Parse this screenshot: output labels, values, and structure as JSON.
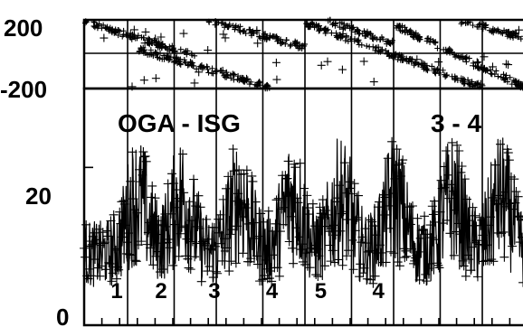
{
  "chart_data": [
    {
      "type": "scatter",
      "panel": "top",
      "title": "",
      "xlabel": "",
      "ylabel": "",
      "ylim": [
        -200,
        200
      ],
      "yticks": [
        "200",
        "-200"
      ],
      "reference_line_y": 0,
      "grid": false,
      "legend": "none",
      "series": [
        {
          "marker": "+",
          "bands": [
            {
              "t_start": 0.0,
              "t_end": 0.25,
              "y_start": 190,
              "y_end": -10
            },
            {
              "t_start": 0.12,
              "t_end": 0.42,
              "y_start": 30,
              "y_end": -195
            },
            {
              "t_start": 0.28,
              "t_end": 0.5,
              "y_start": 195,
              "y_end": 40
            },
            {
              "t_start": 0.5,
              "t_end": 0.9,
              "y_start": 180,
              "y_end": -195
            },
            {
              "t_start": 0.55,
              "t_end": 0.7,
              "y_start": 195,
              "y_end": 60
            },
            {
              "t_start": 0.7,
              "t_end": 1.0,
              "y_start": 170,
              "y_end": -200
            },
            {
              "t_start": 0.85,
              "t_end": 1.0,
              "y_start": 195,
              "y_end": 90
            }
          ]
        }
      ]
    },
    {
      "type": "line",
      "panel": "bottom",
      "title": "",
      "xlabel": "",
      "ylabel": "",
      "ylim": [
        0,
        30
      ],
      "yticks": [
        "20",
        "0"
      ],
      "ytick_values": [
        20,
        0
      ],
      "grid": false,
      "legend": "none",
      "annotations": [
        "OGA - ISG",
        "3 - 4"
      ],
      "minor_labels": [
        "1",
        "2",
        "3",
        "4",
        "5",
        "4"
      ],
      "series": [
        {
          "marker": "+",
          "typical_range": [
            3,
            22
          ],
          "peak_value": 27,
          "peaks_at_fraction": [
            0.12,
            0.22,
            0.35,
            0.47,
            0.58,
            0.7,
            0.83,
            0.94
          ]
        }
      ]
    }
  ],
  "colors": {
    "ink": "#000000",
    "background": "#ffffff"
  }
}
